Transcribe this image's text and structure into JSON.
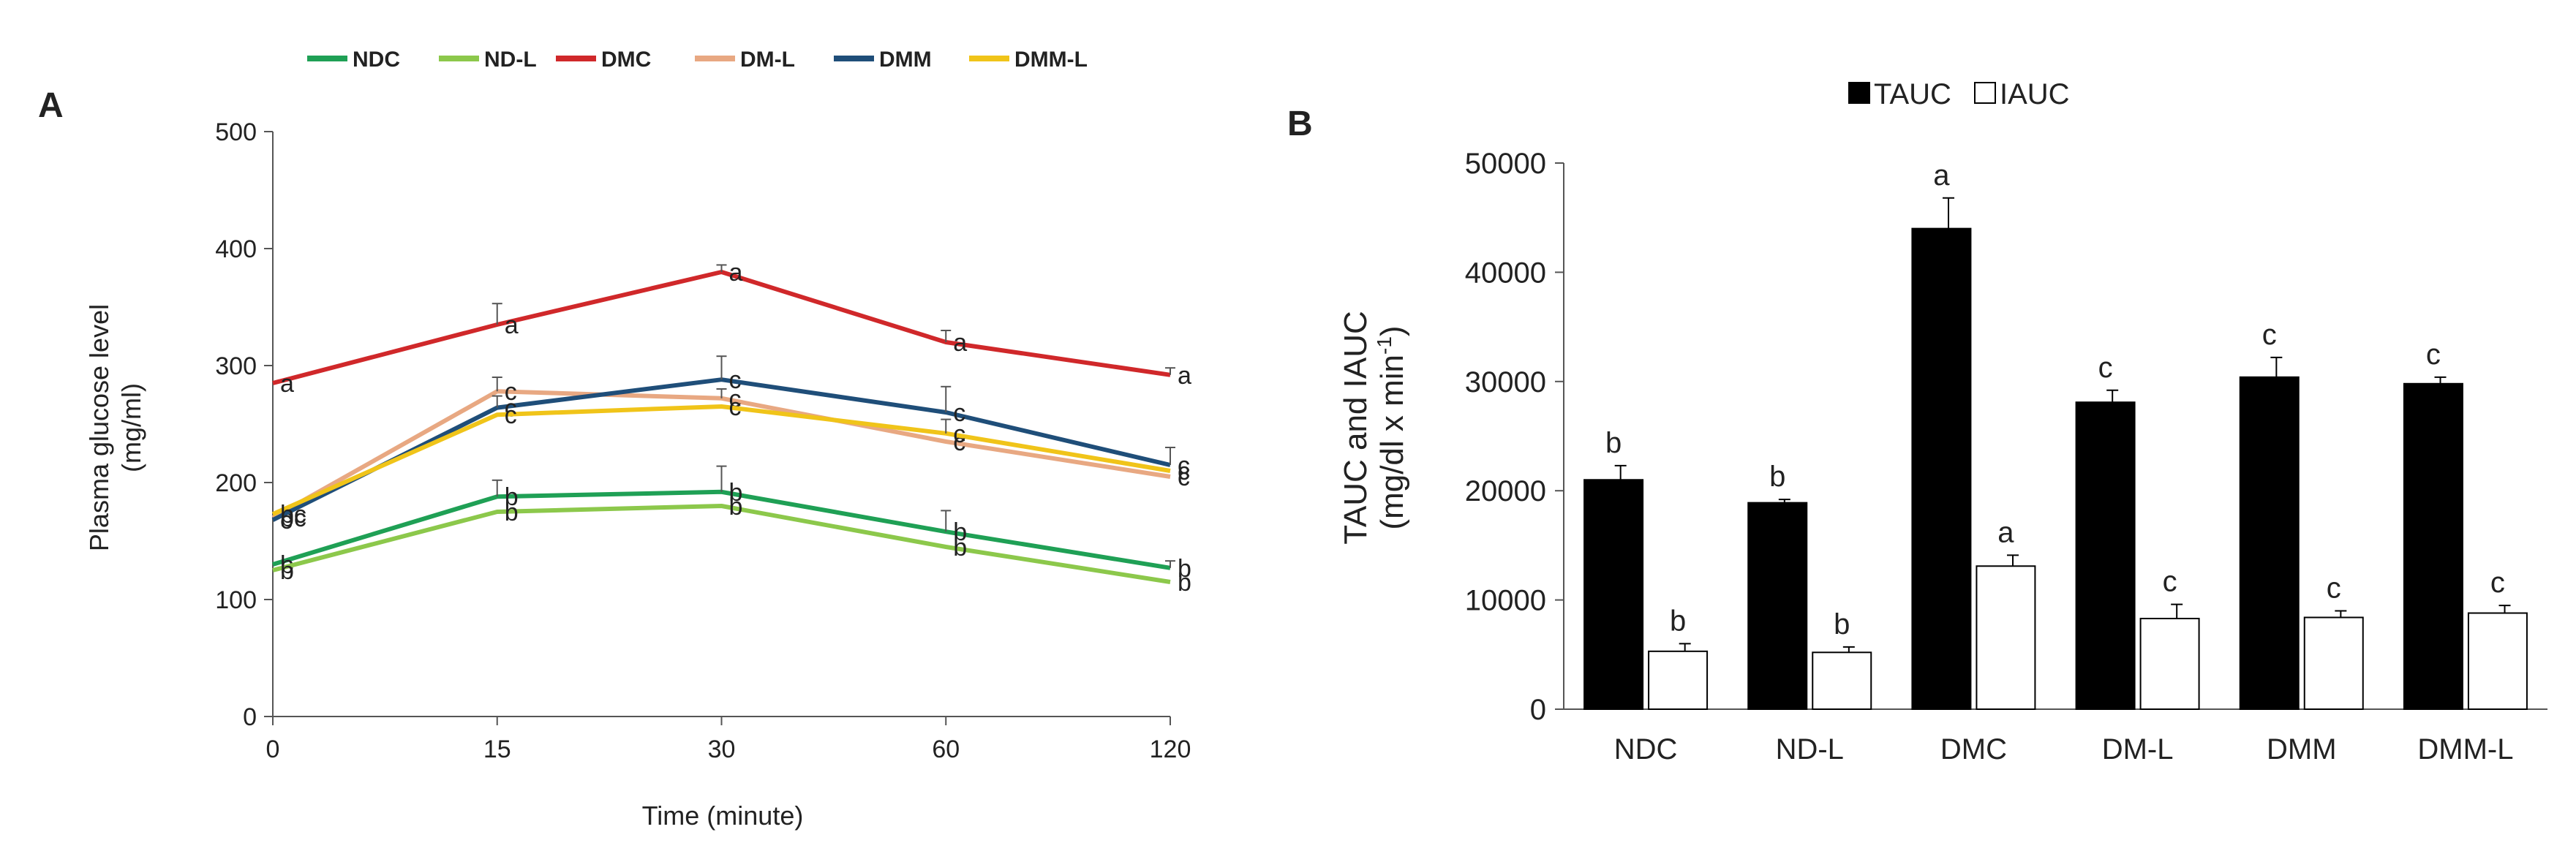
{
  "colors": {
    "NDC": "#1fa055",
    "ND-L": "#8cc84b",
    "DMC": "#d0282a",
    "DM-L": "#e8a882",
    "DMM": "#1f4e79",
    "DMM-L": "#f0c419",
    "axis": "#555555",
    "bar_fill_tauc": "#000000",
    "bar_fill_iauc": "#ffffff"
  },
  "chart_data": [
    {
      "panel": "A",
      "type": "line",
      "title": "",
      "xlabel": "Time (minute)",
      "ylabel": [
        "Plasma glucose level",
        "(mg/ml)"
      ],
      "ylim": [
        0,
        500
      ],
      "yticks": [
        "0",
        "100",
        "200",
        "300",
        "400",
        "500"
      ],
      "categories": [
        "0",
        "15",
        "30",
        "60",
        "120"
      ],
      "legend_position": "top",
      "series": [
        {
          "name": "NDC",
          "values": [
            130,
            188,
            192,
            158,
            127
          ],
          "errors": [
            0,
            14,
            22,
            18,
            6
          ],
          "labels": [
            "b",
            "b",
            "b",
            "b",
            "b"
          ]
        },
        {
          "name": "ND-L",
          "values": [
            125,
            175,
            180,
            145,
            115
          ],
          "errors": [
            0,
            0,
            0,
            0,
            0
          ],
          "labels": [
            "b",
            "b",
            "b",
            "b",
            "b"
          ]
        },
        {
          "name": "DMC",
          "values": [
            285,
            335,
            380,
            320,
            292
          ],
          "errors": [
            0,
            18,
            6,
            10,
            6
          ],
          "labels": [
            "a",
            "a",
            "a",
            "a",
            "a"
          ]
        },
        {
          "name": "DM-L",
          "values": [
            170,
            278,
            272,
            235,
            205
          ],
          "errors": [
            0,
            12,
            8,
            0,
            0
          ],
          "labels": [
            "bc",
            "c",
            "c",
            "c",
            "c"
          ]
        },
        {
          "name": "DMM",
          "values": [
            168,
            264,
            288,
            260,
            215
          ],
          "errors": [
            0,
            10,
            20,
            22,
            15
          ],
          "labels": [
            "c",
            "c",
            "c",
            "c",
            "c"
          ]
        },
        {
          "name": "DMM-L",
          "values": [
            173,
            258,
            265,
            242,
            210
          ],
          "errors": [
            0,
            0,
            0,
            12,
            0
          ],
          "labels": [
            "bc",
            "c",
            "c",
            "c",
            "c"
          ]
        }
      ]
    },
    {
      "panel": "B",
      "type": "bar",
      "title": "",
      "xlabel": "",
      "ylabel": "TAUC and IAUC",
      "ylabel_unit": "(mg/dl x min",
      "ylabel_sup": "-1",
      "ylabel_close": ")",
      "ylim": [
        0,
        50000
      ],
      "yticks": [
        "0",
        "10000",
        "20000",
        "30000",
        "40000",
        "50000"
      ],
      "categories": [
        "NDC",
        "ND-L",
        "DMC",
        "DM-L",
        "DMM",
        "DMM-L"
      ],
      "legend_position": "top",
      "series": [
        {
          "name": "TAUC",
          "values": [
            21000,
            18900,
            44000,
            28100,
            30400,
            29800
          ],
          "errors": [
            1300,
            300,
            2800,
            1100,
            1800,
            600
          ],
          "labels": [
            "b",
            "b",
            "a",
            "c",
            "c",
            "c"
          ]
        },
        {
          "name": "IAUC",
          "values": [
            5300,
            5200,
            13100,
            8300,
            8400,
            8800
          ],
          "errors": [
            700,
            500,
            1000,
            1300,
            600,
            700
          ],
          "labels": [
            "b",
            "b",
            "a",
            "c",
            "c",
            "c"
          ]
        }
      ]
    }
  ]
}
